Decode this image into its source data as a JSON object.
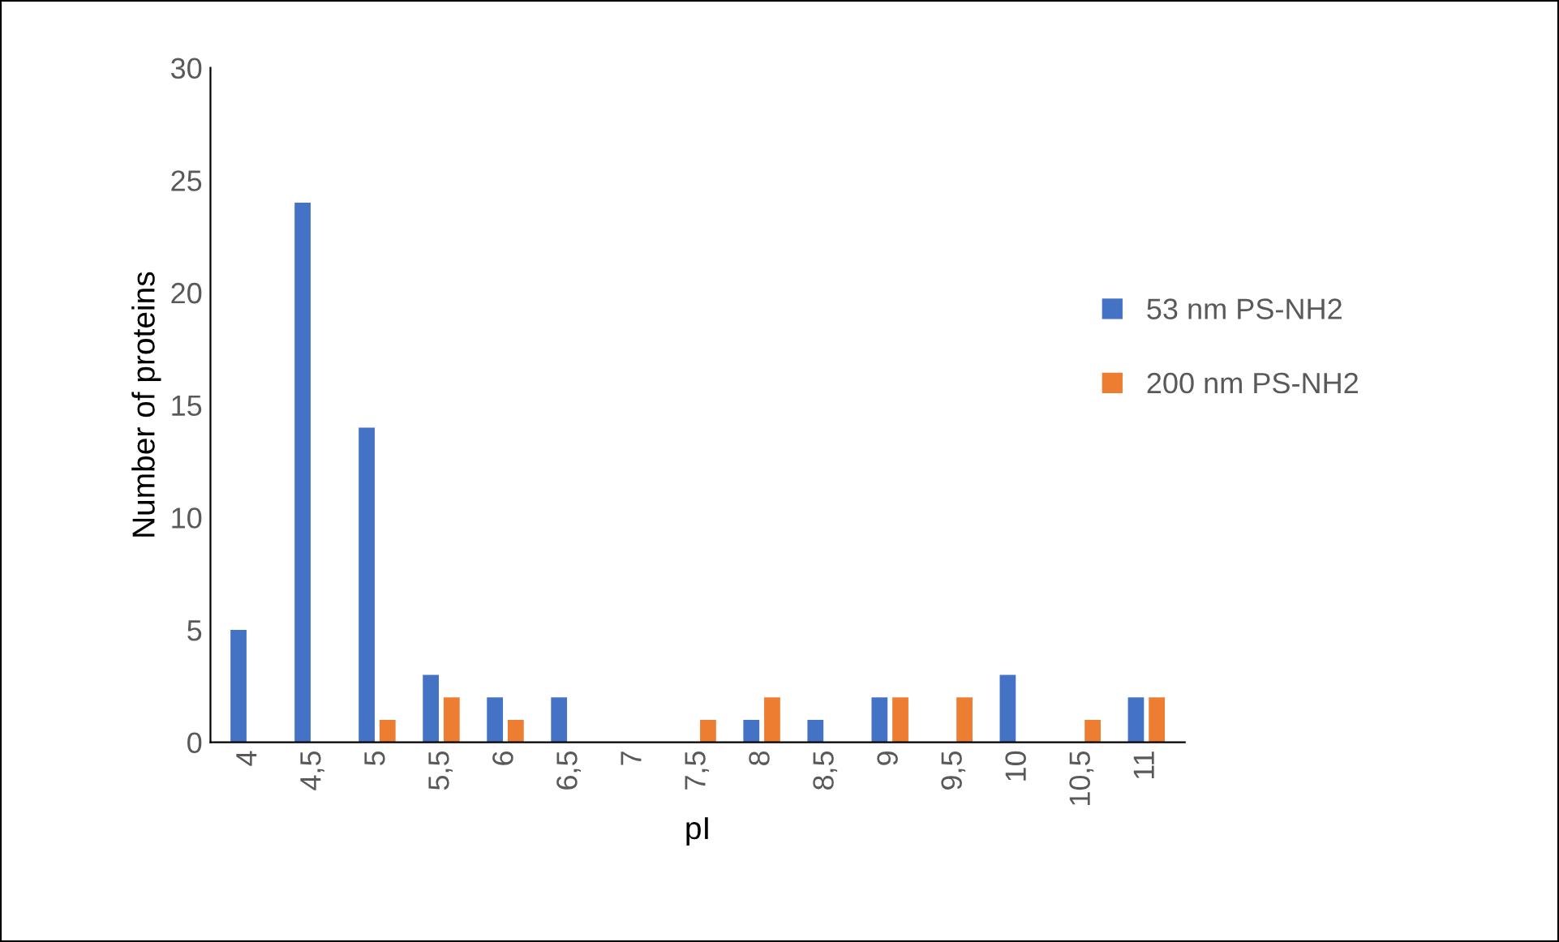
{
  "chart_data": {
    "type": "bar",
    "xlabel": "pI",
    "ylabel": "Number of proteins",
    "categories": [
      "4",
      "4,5",
      "5",
      "5,5",
      "6",
      "6,5",
      "7",
      "7,5",
      "8",
      "8,5",
      "9",
      "9,5",
      "10",
      "10,5",
      "11"
    ],
    "series": [
      {
        "name": "53 nm PS-NH2",
        "color": "#4472c4",
        "values": [
          5,
          24,
          14,
          3,
          2,
          2,
          0,
          0,
          1,
          1,
          2,
          0,
          3,
          0,
          2
        ]
      },
      {
        "name": "200 nm PS-NH2",
        "color": "#ed7d31",
        "values": [
          0,
          0,
          1,
          2,
          1,
          0,
          0,
          1,
          2,
          0,
          2,
          2,
          0,
          1,
          2
        ]
      }
    ],
    "ylim": [
      0,
      30
    ],
    "yticks": [
      0,
      5,
      10,
      15,
      20,
      25,
      30
    ],
    "grid": false,
    "legend": "right"
  }
}
